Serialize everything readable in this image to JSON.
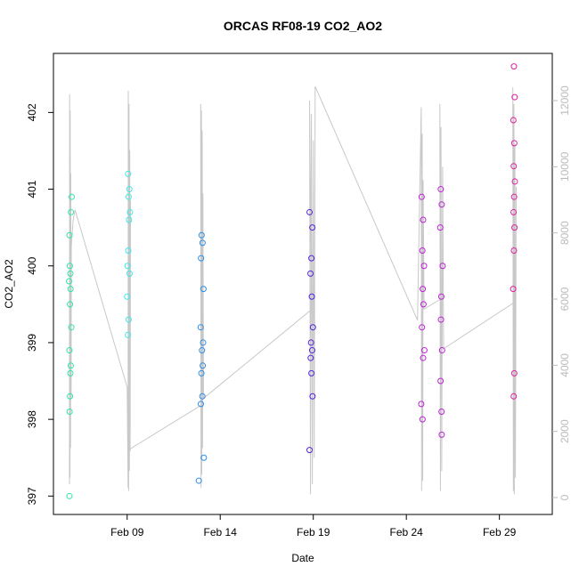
{
  "chart_data": {
    "type": "scatter",
    "title": "ORCAS RF08-19 CO2_AO2",
    "x_label": "Date",
    "y_label": "CO2_AO2",
    "xlim": [
      5.04,
      31.84
    ],
    "xticks": [
      {
        "value": 9,
        "label": "Feb 09"
      },
      {
        "value": 14,
        "label": "Feb 14"
      },
      {
        "value": 19,
        "label": "Feb 19"
      },
      {
        "value": 24,
        "label": "Feb 24"
      },
      {
        "value": 29,
        "label": "Feb 29"
      }
    ],
    "ylim": [
      396.76,
      402.77
    ],
    "yticks": [
      397,
      398,
      399,
      400,
      401,
      402
    ],
    "y2lim": [
      -511,
      13427
    ],
    "y2ticks": [
      0,
      2000,
      4000,
      6000,
      8000,
      10000,
      12000
    ],
    "series": [
      {
        "axis": "y2",
        "color": "#c8c8c8",
        "x": [
          5.9,
          5.91,
          5.93,
          5.94,
          5.96,
          5.97,
          5.99,
          6.0,
          6.05,
          6.1,
          6.2,
          9.0,
          9.05,
          9.06,
          9.08,
          9.1,
          9.12,
          9.14,
          9.16,
          9.18,
          9.1,
          13.0,
          12.95,
          12.97,
          12.99,
          13.01,
          13.03,
          13.05,
          13.07,
          13.1,
          18.9,
          18.8,
          18.85,
          18.9,
          18.95,
          19.0,
          19.05,
          19.1,
          24.6,
          24.8,
          24.82,
          24.85,
          24.88,
          24.9,
          24.95,
          25.85,
          25.8,
          25.83,
          25.86,
          25.9,
          25.95,
          26.0,
          29.8,
          29.72,
          29.75,
          29.78,
          29.8,
          29.83,
          29.86,
          29.9
        ],
        "values": [
          400,
          12200,
          600,
          11700,
          1500,
          9800,
          3000,
          7600,
          8000,
          8400,
          8700,
          3340,
          300,
          12300,
          200,
          11900,
          800,
          10500,
          1400,
          9000,
          1450,
          2800,
          11900,
          300,
          11700,
          700,
          11100,
          1500,
          9200,
          3000,
          5680,
          12000,
          100,
          11600,
          400,
          10800,
          1200,
          12430,
          5360,
          11800,
          200,
          11000,
          500,
          9600,
          5700,
          6000,
          11900,
          200,
          11200,
          800,
          10000,
          4500,
          5900,
          12400,
          200,
          11900,
          100,
          10700,
          600,
          9400
        ]
      },
      {
        "color": "#2de6a8",
        "x": [
          6.02,
          5.98,
          5.9,
          5.92,
          5.95,
          5.88,
          5.96,
          5.93,
          6.0,
          5.9,
          5.97,
          5.95,
          5.93,
          5.91,
          5.9
        ],
        "values": [
          400.9,
          400.7,
          400.4,
          400.0,
          399.9,
          399.8,
          399.7,
          399.5,
          399.2,
          398.9,
          398.7,
          398.6,
          398.3,
          398.1,
          397.0
        ]
      },
      {
        "color": "#3ee8e8",
        "x": [
          9.05,
          9.12,
          9.08,
          9.15,
          9.1,
          9.06,
          9.02,
          9.13,
          9.0,
          9.08,
          9.04
        ],
        "values": [
          401.2,
          401.0,
          400.9,
          400.7,
          400.6,
          400.2,
          400.0,
          399.9,
          399.6,
          399.3,
          399.1
        ]
      },
      {
        "color": "#2b8fe8",
        "x": [
          13.0,
          13.05,
          12.97,
          13.1,
          12.95,
          13.08,
          13.02,
          13.06,
          12.99,
          13.04,
          12.96,
          13.12,
          12.85
        ],
        "values": [
          400.4,
          400.3,
          400.1,
          399.7,
          399.2,
          399.0,
          398.9,
          398.7,
          398.6,
          398.3,
          398.2,
          397.5,
          397.2
        ]
      },
      {
        "color": "#5522e0",
        "x": [
          18.8,
          18.95,
          18.9,
          18.85,
          18.92,
          18.98,
          18.88,
          18.94,
          18.86,
          18.9,
          18.96,
          18.8
        ],
        "values": [
          400.7,
          400.5,
          400.1,
          399.9,
          399.6,
          399.2,
          399.0,
          398.9,
          398.8,
          398.6,
          398.3,
          397.6
        ]
      },
      {
        "color": "#c020d8",
        "x": [
          24.82,
          24.9,
          24.86,
          24.95,
          24.88,
          24.92,
          24.84,
          24.97,
          24.9,
          24.8,
          24.87,
          25.85,
          25.9,
          25.82,
          25.95,
          25.88,
          25.86,
          25.92,
          25.84,
          25.89,
          25.9
        ],
        "values": [
          400.9,
          400.6,
          400.2,
          400.0,
          399.7,
          399.5,
          399.2,
          398.9,
          398.8,
          398.2,
          398.0,
          401.0,
          400.8,
          400.5,
          400.0,
          399.6,
          399.3,
          398.9,
          398.5,
          398.1,
          397.8
        ]
      },
      {
        "color": "#e020a0",
        "x": [
          29.78,
          29.82,
          29.75,
          29.8,
          29.77,
          29.83,
          29.79,
          29.76,
          29.81,
          29.78,
          29.74,
          29.8,
          29.77
        ],
        "values": [
          402.6,
          402.2,
          401.9,
          401.6,
          401.3,
          401.1,
          400.9,
          400.7,
          400.5,
          400.2,
          399.7,
          398.6,
          398.3
        ]
      }
    ]
  }
}
